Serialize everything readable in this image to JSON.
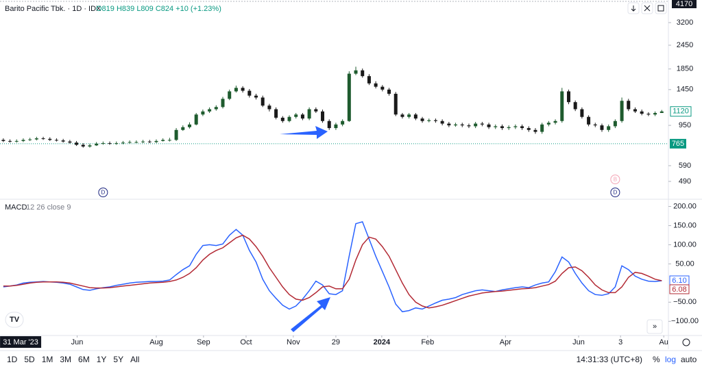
{
  "header": {
    "symbol": "Barito Pacific Tbk. · 1D · IDX",
    "ohlc_readout": "O819 H839 L809 C824 +10 (+1.23%)"
  },
  "toolbar": {
    "ranges": [
      "1D",
      "5D",
      "1M",
      "3M",
      "6M",
      "1Y",
      "5Y",
      "All"
    ],
    "clock": "14:31:33 (UTC+8)",
    "percent": "%",
    "log": "log",
    "auto": "auto"
  },
  "chart_data": [
    {
      "type": "candlestick",
      "log": true,
      "ylim": [
        400,
        4180
      ],
      "yticks": [
        490,
        590,
        950,
        1450,
        1850,
        2450,
        3200
      ],
      "top_tag": 4170,
      "last_price": 1120,
      "marker_price": 765,
      "up_color": "#1e5b2e",
      "down_color": "#1a1a1a",
      "xlim": [
        -0.5,
        100
      ],
      "xticks": [
        {
          "value": 11.1,
          "label": "Jun"
        },
        {
          "value": 23,
          "label": "Aug"
        },
        {
          "value": 30.1,
          "label": "Sep"
        },
        {
          "value": 36.5,
          "label": "Oct"
        },
        {
          "value": 43.6,
          "label": "Nov"
        },
        {
          "value": 50,
          "label": "29"
        },
        {
          "value": 56.9,
          "label": "2024"
        },
        {
          "value": 63.8,
          "label": "Feb"
        },
        {
          "value": 75.5,
          "label": "Apr"
        },
        {
          "value": 86.5,
          "label": "Jun"
        },
        {
          "value": 92.8,
          "label": "3"
        },
        {
          "value": 99.3,
          "label": "Au"
        }
      ],
      "cursor_x": {
        "value": 2.6,
        "label": "31 Mar '23"
      },
      "events": [
        {
          "x": 15,
          "label": "D"
        },
        {
          "x": 92,
          "label": "D"
        },
        {
          "x": 92,
          "label": "B"
        }
      ],
      "ohlc": [
        [
          800,
          815,
          780,
          790
        ],
        [
          790,
          805,
          775,
          785
        ],
        [
          785,
          805,
          775,
          790
        ],
        [
          790,
          815,
          780,
          800
        ],
        [
          800,
          820,
          790,
          805
        ],
        [
          805,
          830,
          795,
          815
        ],
        [
          815,
          830,
          800,
          810
        ],
        [
          810,
          825,
          790,
          800
        ],
        [
          800,
          815,
          785,
          795
        ],
        [
          795,
          810,
          775,
          785
        ],
        [
          785,
          800,
          765,
          775
        ],
        [
          775,
          790,
          745,
          755
        ],
        [
          755,
          770,
          730,
          740
        ],
        [
          740,
          765,
          730,
          750
        ],
        [
          750,
          780,
          745,
          765
        ],
        [
          765,
          785,
          755,
          770
        ],
        [
          770,
          785,
          755,
          765
        ],
        [
          765,
          785,
          755,
          770
        ],
        [
          770,
          790,
          760,
          775
        ],
        [
          775,
          795,
          765,
          780
        ],
        [
          780,
          795,
          770,
          780
        ],
        [
          780,
          800,
          770,
          785
        ],
        [
          785,
          800,
          770,
          780
        ],
        [
          780,
          805,
          770,
          790
        ],
        [
          790,
          815,
          785,
          800
        ],
        [
          800,
          820,
          785,
          800
        ],
        [
          800,
          920,
          790,
          900
        ],
        [
          900,
          950,
          890,
          930
        ],
        [
          930,
          985,
          915,
          960
        ],
        [
          960,
          1100,
          950,
          1080
        ],
        [
          1080,
          1145,
          1060,
          1120
        ],
        [
          1120,
          1175,
          1100,
          1150
        ],
        [
          1150,
          1205,
          1130,
          1180
        ],
        [
          1180,
          1330,
          1160,
          1300
        ],
        [
          1300,
          1450,
          1280,
          1420
        ],
        [
          1420,
          1520,
          1400,
          1480
        ],
        [
          1480,
          1510,
          1400,
          1430
        ],
        [
          1430,
          1460,
          1320,
          1350
        ],
        [
          1350,
          1380,
          1290,
          1320
        ],
        [
          1320,
          1350,
          1180,
          1200
        ],
        [
          1200,
          1225,
          1120,
          1150
        ],
        [
          1150,
          1175,
          1020,
          1040
        ],
        [
          1040,
          1060,
          980,
          1000
        ],
        [
          1000,
          1070,
          985,
          1050
        ],
        [
          1050,
          1100,
          1030,
          1080
        ],
        [
          1080,
          1100,
          1010,
          1030
        ],
        [
          1030,
          1175,
          1010,
          1150
        ],
        [
          1150,
          1175,
          1100,
          1120
        ],
        [
          1120,
          1145,
          980,
          1000
        ],
        [
          1000,
          1020,
          900,
          920
        ],
        [
          920,
          980,
          900,
          960
        ],
        [
          960,
          1020,
          940,
          1000
        ],
        [
          1000,
          1800,
          990,
          1750
        ],
        [
          1750,
          1900,
          1720,
          1820
        ],
        [
          1820,
          1860,
          1670,
          1700
        ],
        [
          1700,
          1740,
          1530,
          1560
        ],
        [
          1560,
          1600,
          1470,
          1500
        ],
        [
          1500,
          1530,
          1420,
          1450
        ],
        [
          1450,
          1480,
          1350,
          1380
        ],
        [
          1380,
          1410,
          1060,
          1080
        ],
        [
          1080,
          1100,
          1030,
          1050
        ],
        [
          1050,
          1100,
          1030,
          1080
        ],
        [
          1080,
          1100,
          1010,
          1030
        ],
        [
          1030,
          1050,
          980,
          1000
        ],
        [
          1000,
          1030,
          985,
          1010
        ],
        [
          1010,
          1030,
          980,
          1000
        ],
        [
          1000,
          1020,
          950,
          970
        ],
        [
          970,
          990,
          930,
          950
        ],
        [
          950,
          980,
          935,
          960
        ],
        [
          960,
          980,
          930,
          950
        ],
        [
          950,
          970,
          920,
          940
        ],
        [
          940,
          990,
          920,
          970
        ],
        [
          970,
          990,
          940,
          960
        ],
        [
          960,
          980,
          910,
          930
        ],
        [
          930,
          960,
          910,
          940
        ],
        [
          940,
          960,
          900,
          920
        ],
        [
          920,
          950,
          900,
          930
        ],
        [
          930,
          960,
          910,
          940
        ],
        [
          940,
          960,
          900,
          920
        ],
        [
          920,
          940,
          880,
          900
        ],
        [
          900,
          920,
          860,
          880
        ],
        [
          880,
          980,
          860,
          960
        ],
        [
          960,
          1000,
          940,
          980
        ],
        [
          980,
          1020,
          960,
          1000
        ],
        [
          1000,
          1480,
          980,
          1420
        ],
        [
          1420,
          1450,
          1220,
          1250
        ],
        [
          1250,
          1275,
          1125,
          1150
        ],
        [
          1150,
          1175,
          1030,
          1050
        ],
        [
          1050,
          1070,
          940,
          960
        ],
        [
          960,
          980,
          930,
          950
        ],
        [
          950,
          970,
          880,
          900
        ],
        [
          900,
          960,
          880,
          940
        ],
        [
          940,
          1020,
          920,
          1000
        ],
        [
          1000,
          1320,
          980,
          1270
        ],
        [
          1270,
          1300,
          1125,
          1150
        ],
        [
          1150,
          1175,
          1100,
          1120
        ],
        [
          1120,
          1145,
          1070,
          1090
        ],
        [
          1090,
          1110,
          1060,
          1080
        ],
        [
          1080,
          1120,
          1060,
          1100
        ],
        [
          1100,
          1140,
          1100,
          1120
        ]
      ]
    },
    {
      "type": "line",
      "title": "MACD",
      "subtitle": "12 26 close 9",
      "ylim": [
        -137,
        217
      ],
      "yticks": [
        {
          "value": 200,
          "label": "200.00"
        },
        {
          "value": 150,
          "label": "150.00"
        },
        {
          "value": 100,
          "label": "100.00"
        },
        {
          "value": 50,
          "label": "50.00"
        },
        {
          "value": -50,
          "label": "−50.00"
        },
        {
          "value": -100,
          "label": "−100.00"
        }
      ],
      "series": [
        {
          "name": "MACD",
          "color": "#2962ff",
          "tag": {
            "value": 6.1,
            "label": "6.10"
          },
          "values": [
            -10,
            -8,
            -5,
            0,
            2,
            3,
            4,
            3,
            2,
            0,
            -3,
            -10,
            -17,
            -19,
            -15,
            -12,
            -10,
            -6,
            -3,
            0,
            2,
            3,
            4,
            4,
            5,
            8,
            22,
            35,
            45,
            75,
            98,
            100,
            98,
            102,
            125,
            140,
            125,
            85,
            55,
            10,
            -20,
            -40,
            -58,
            -68,
            -60,
            -42,
            -20,
            5,
            -5,
            -28,
            -30,
            -20,
            70,
            155,
            160,
            115,
            70,
            30,
            -10,
            -55,
            -75,
            -72,
            -65,
            -68,
            -60,
            -52,
            -45,
            -42,
            -38,
            -30,
            -25,
            -20,
            -18,
            -20,
            -22,
            -18,
            -15,
            -12,
            -10,
            -12,
            -5,
            0,
            3,
            30,
            68,
            55,
            25,
            0,
            -20,
            -30,
            -32,
            -28,
            -10,
            45,
            35,
            18,
            10,
            5,
            4,
            6.1
          ]
        },
        {
          "name": "Signal",
          "color": "#b22833",
          "tag": {
            "value": 6.08,
            "label": "6.08"
          },
          "values": [
            -8,
            -8,
            -6,
            -3,
            0,
            2,
            3,
            3,
            3,
            2,
            0,
            -4,
            -8,
            -12,
            -13,
            -13,
            -12,
            -10,
            -8,
            -6,
            -4,
            -2,
            0,
            1,
            2,
            4,
            8,
            15,
            25,
            40,
            60,
            75,
            85,
            92,
            105,
            118,
            125,
            115,
            95,
            70,
            40,
            15,
            -10,
            -30,
            -42,
            -45,
            -38,
            -25,
            -10,
            -8,
            -15,
            -15,
            10,
            60,
            100,
            120,
            115,
            95,
            70,
            35,
            0,
            -30,
            -50,
            -60,
            -65,
            -62,
            -58,
            -52,
            -46,
            -40,
            -34,
            -30,
            -26,
            -24,
            -22,
            -21,
            -19,
            -17,
            -15,
            -14,
            -12,
            -8,
            -4,
            5,
            25,
            40,
            42,
            32,
            15,
            -5,
            -18,
            -25,
            -25,
            -10,
            15,
            28,
            25,
            18,
            10,
            6.08
          ]
        }
      ]
    }
  ]
}
